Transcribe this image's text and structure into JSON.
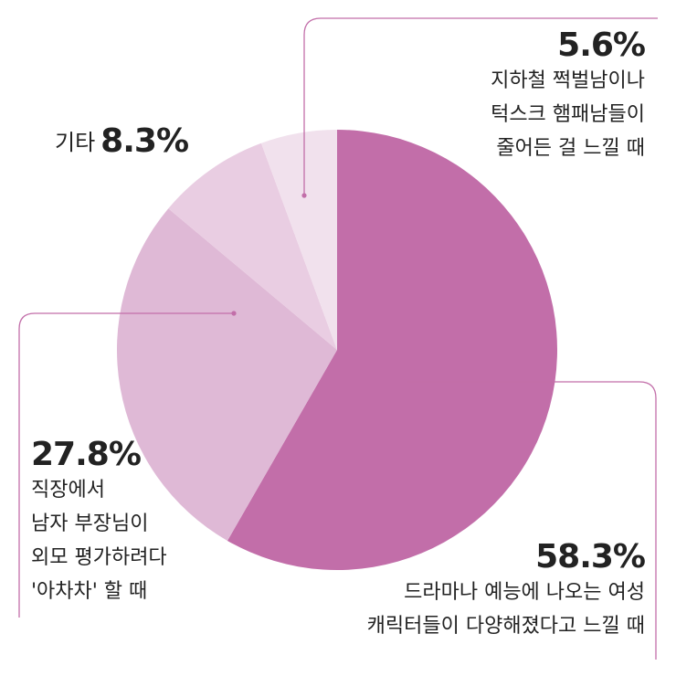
{
  "chart_data": {
    "type": "pie",
    "slices": [
      {
        "value": 58.3,
        "pct_label": "58.3%",
        "desc": [
          "드라마나 예능에 나오는 여성",
          "캐릭터들이 다양해졌다고 느낄 때"
        ],
        "color": "#c26ea9"
      },
      {
        "value": 27.8,
        "pct_label": "27.8%",
        "desc": [
          "직장에서",
          "남자 부장님이",
          "외모 평가하려다",
          "'아차차' 할 때"
        ],
        "color": "#dfb9d6"
      },
      {
        "value": 8.3,
        "pct_label": "8.3%",
        "name": "기타",
        "desc": [],
        "color": "#e9cde2"
      },
      {
        "value": 5.6,
        "pct_label": "5.6%",
        "desc": [
          "지하철 쩍벌남이나",
          "턱스크 햄패남들이",
          "줄어든 걸 느낄 때"
        ],
        "color": "#f1e1ed"
      }
    ],
    "leader_color": "#c26ea9"
  }
}
